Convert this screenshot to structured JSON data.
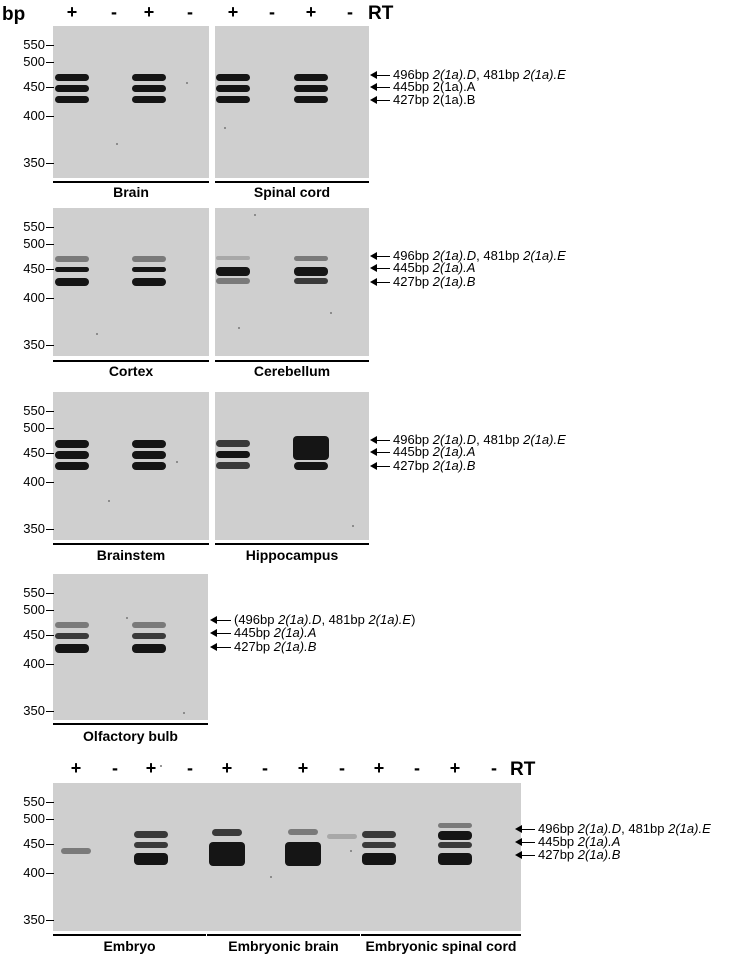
{
  "bp_label": "bp",
  "rt_label": "RT",
  "rt_signs": [
    "+",
    "-",
    "+",
    "-"
  ],
  "ladder": [
    "550",
    "500",
    "450",
    "400",
    "350"
  ],
  "panels": [
    {
      "tissues": [
        "Brain",
        "Spinal cord"
      ],
      "annotations": [
        [
          {
            "t": "496bp "
          },
          {
            "t": "2(1a).D",
            "i": true
          },
          {
            "t": ", 481bp "
          },
          {
            "t": "2(1a).E",
            "i": true
          }
        ],
        [
          {
            "t": "445bp 2(1a).A"
          }
        ],
        [
          {
            "t": "427bp 2(1a).B"
          }
        ]
      ]
    },
    {
      "tissues": [
        "Cortex",
        "Cerebellum"
      ],
      "annotations": [
        [
          {
            "t": "496bp "
          },
          {
            "t": "2(1a).D",
            "i": true
          },
          {
            "t": ", 481bp "
          },
          {
            "t": "2(1a).E",
            "i": true
          }
        ],
        [
          {
            "t": "445bp "
          },
          {
            "t": "2(1a).A",
            "i": true
          }
        ],
        [
          {
            "t": "427bp "
          },
          {
            "t": "2(1a).B",
            "i": true
          }
        ]
      ]
    },
    {
      "tissues": [
        "Brainstem",
        "Hippocampus"
      ],
      "annotations": [
        [
          {
            "t": "496bp "
          },
          {
            "t": "2(1a).D",
            "i": true
          },
          {
            "t": ", 481bp "
          },
          {
            "t": "2(1a).E",
            "i": true
          }
        ],
        [
          {
            "t": "445bp "
          },
          {
            "t": "2(1a).A",
            "i": true
          }
        ],
        [
          {
            "t": "427bp "
          },
          {
            "t": "2(1a).B",
            "i": true
          }
        ]
      ]
    },
    {
      "tissues": [
        "Olfactory bulb"
      ],
      "annotations": [
        [
          {
            "t": "(496bp "
          },
          {
            "t": "2(1a).D",
            "i": true
          },
          {
            "t": ", 481bp "
          },
          {
            "t": "2(1a).E",
            "i": true
          },
          {
            "t": ")"
          }
        ],
        [
          {
            "t": "445bp "
          },
          {
            "t": "2(1a).A",
            "i": true
          }
        ],
        [
          {
            "t": "427bp "
          },
          {
            "t": "2(1a).B",
            "i": true
          }
        ]
      ]
    },
    {
      "tissues": [
        "Embryo",
        "Embryonic brain",
        "Embryonic spinal cord"
      ],
      "annotations": [
        [
          {
            "t": "496bp "
          },
          {
            "t": "2(1a).D",
            "i": true
          },
          {
            "t": ", 481bp "
          },
          {
            "t": "2(1a).E",
            "i": true
          }
        ],
        [
          {
            "t": "445bp "
          },
          {
            "t": "2(1a).A",
            "i": true
          }
        ],
        [
          {
            "t": "427bp "
          },
          {
            "t": "2(1a).B",
            "i": true
          }
        ]
      ]
    }
  ]
}
